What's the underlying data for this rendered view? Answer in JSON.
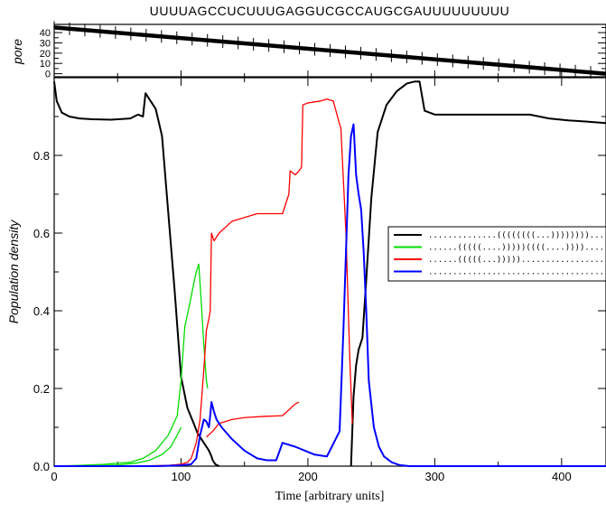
{
  "sequence": "UUUUAGCCUCUUUGAGGUCGCCAUGCGAUUUUUUUUU",
  "chart_data": [
    {
      "type": "line",
      "panel": "top",
      "ylabel": "pore",
      "xlim": [
        0,
        435
      ],
      "ylim": [
        -3,
        48
      ],
      "yticks": [
        0,
        10,
        20,
        30,
        40
      ],
      "series": [
        {
          "color": "#000000",
          "x": [
            0,
            435
          ],
          "y": [
            45,
            0
          ]
        }
      ]
    },
    {
      "type": "line",
      "panel": "main",
      "xlabel": "Time [arbitrary units]",
      "ylabel": "Population density",
      "xlim": [
        0,
        435
      ],
      "ylim": [
        0,
        1.0
      ],
      "xticks": [
        0,
        100,
        200,
        300,
        400
      ],
      "yticks": [
        0.0,
        0.2,
        0.4,
        0.6,
        0.8
      ],
      "legend_position": "right",
      "series": [
        {
          "name": "..............((((((((...)))))))).......",
          "color": "#000000",
          "x": [
            0,
            2,
            6,
            12,
            20,
            30,
            45,
            60,
            66,
            70,
            72,
            75,
            80,
            85,
            90,
            95,
            100,
            105,
            110,
            113,
            116,
            118,
            120,
            122,
            124,
            125,
            127,
            130
          ],
          "y": [
            0.99,
            0.94,
            0.91,
            0.9,
            0.895,
            0.893,
            0.892,
            0.895,
            0.905,
            0.9,
            0.96,
            0.945,
            0.92,
            0.85,
            0.65,
            0.45,
            0.23,
            0.15,
            0.11,
            0.085,
            0.07,
            0.06,
            0.05,
            0.04,
            0.025,
            0.015,
            0.005,
            0.0
          ]
        },
        {
          "name": "..............((((((((...)))))))).......",
          "color": "#000000",
          "x": [
            234,
            236,
            238,
            240,
            243,
            246,
            250,
            255,
            262,
            270,
            278,
            284,
            288,
            292,
            300,
            320,
            350,
            375,
            390,
            405,
            420,
            435
          ],
          "y": [
            0.0,
            0.18,
            0.26,
            0.3,
            0.33,
            0.48,
            0.69,
            0.86,
            0.93,
            0.965,
            0.985,
            0.99,
            0.99,
            0.915,
            0.905,
            0.905,
            0.905,
            0.905,
            0.895,
            0.89,
            0.887,
            0.883
          ]
        },
        {
          "name": "......(((((....)))))((((....)))).........",
          "color": "#00dd00",
          "x": [
            0,
            20,
            40,
            60,
            70,
            80,
            90,
            97,
            100,
            103,
            107,
            110,
            112,
            114,
            116,
            118,
            120,
            121
          ],
          "y": [
            0.0,
            0.002,
            0.005,
            0.01,
            0.02,
            0.04,
            0.08,
            0.13,
            0.22,
            0.36,
            0.42,
            0.47,
            0.5,
            0.52,
            0.42,
            0.31,
            0.22,
            0.2
          ]
        },
        {
          "name": "......(((((....)))))((((....)))).........",
          "color": "#00dd00",
          "x": [
            0,
            30,
            50,
            65,
            75,
            85,
            92,
            97,
            100
          ],
          "y": [
            0.0,
            0.001,
            0.003,
            0.008,
            0.015,
            0.03,
            0.05,
            0.08,
            0.1
          ]
        },
        {
          "name": "......(((((...)))))........................",
          "color": "#ff0000",
          "x": [
            0,
            60,
            90,
            100,
            105,
            108,
            112,
            115,
            118,
            120,
            122,
            123,
            124,
            126,
            130,
            140,
            150,
            160,
            170,
            180,
            185,
            186,
            190,
            193,
            195,
            196,
            200,
            210,
            215,
            220,
            225,
            226,
            230,
            233,
            235
          ],
          "y": [
            0.0,
            0.0,
            0.002,
            0.005,
            0.01,
            0.02,
            0.06,
            0.12,
            0.25,
            0.35,
            0.38,
            0.4,
            0.6,
            0.58,
            0.6,
            0.63,
            0.64,
            0.65,
            0.65,
            0.65,
            0.7,
            0.76,
            0.75,
            0.76,
            0.77,
            0.93,
            0.935,
            0.94,
            0.945,
            0.94,
            0.88,
            0.87,
            0.6,
            0.28,
            0.11
          ]
        },
        {
          "name": "......(((((...)))))........................",
          "color": "#ff0000",
          "x": [
            120,
            125,
            130,
            140,
            150,
            165,
            180,
            185,
            190,
            193
          ],
          "y": [
            0.075,
            0.09,
            0.11,
            0.12,
            0.125,
            0.128,
            0.13,
            0.145,
            0.16,
            0.165
          ]
        },
        {
          "name": ".............................................",
          "color": "#0000ff",
          "x": [
            0,
            80,
            100,
            108,
            112,
            115,
            118,
            120,
            122,
            123,
            124,
            126,
            128,
            132,
            140,
            150,
            160,
            168,
            172,
            175,
            180,
            190,
            205,
            215,
            225,
            228,
            230,
            232,
            234,
            236,
            238,
            240,
            242,
            244,
            246,
            248,
            252,
            256,
            260,
            266,
            272,
            280,
            300,
            350,
            435
          ],
          "y": [
            0.0,
            0.0,
            0.002,
            0.005,
            0.02,
            0.08,
            0.12,
            0.115,
            0.1,
            0.13,
            0.165,
            0.14,
            0.12,
            0.1,
            0.07,
            0.04,
            0.02,
            0.015,
            0.015,
            0.015,
            0.06,
            0.05,
            0.03,
            0.025,
            0.09,
            0.35,
            0.55,
            0.75,
            0.85,
            0.88,
            0.75,
            0.7,
            0.66,
            0.55,
            0.4,
            0.22,
            0.1,
            0.05,
            0.025,
            0.01,
            0.003,
            0.0,
            0.0,
            0.0,
            0.0
          ]
        }
      ],
      "legend": [
        {
          "label": "..............((((((((...)))))))).......",
          "color": "#000000"
        },
        {
          "label": "......(((((....)))))((((....)))).........",
          "color": "#00dd00"
        },
        {
          "label": "......(((((...)))))........................",
          "color": "#ff0000"
        },
        {
          "label": ".............................................",
          "color": "#0000ff"
        }
      ]
    }
  ]
}
